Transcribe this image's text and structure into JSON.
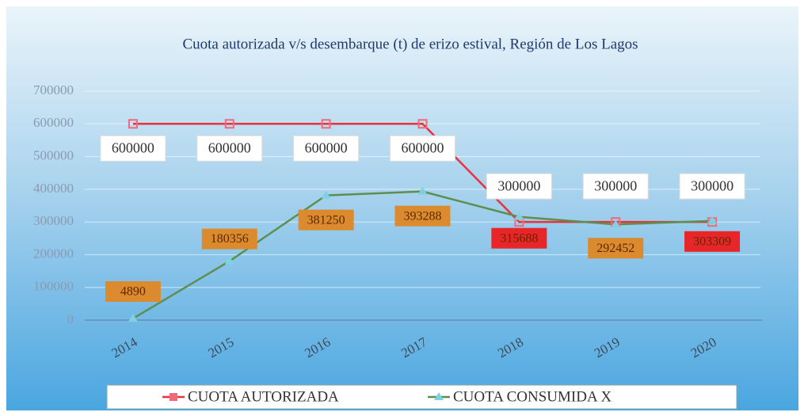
{
  "chart_data": {
    "type": "line",
    "title": "Cuota autorizada v/s desembarque (t) de erizo  estival, Región de Los Lagos",
    "categories": [
      "2014",
      "2015",
      "2016",
      "2017",
      "2018",
      "2019",
      "2020"
    ],
    "series": [
      {
        "name": "CUOTA AUTORIZADA",
        "color": "#e8323c",
        "marker_color": "#f06a7a",
        "label_colors": [
          "#ffffff",
          "#ffffff",
          "#ffffff",
          "#ffffff",
          "#ffffff",
          "#ffffff",
          "#ffffff"
        ],
        "values": [
          600000,
          600000,
          600000,
          600000,
          300000,
          300000,
          300000
        ]
      },
      {
        "name": "CUOTA CONSUMIDA X",
        "color": "#5f8f4e",
        "marker_color": "#7fd0e0",
        "label_colors": [
          "#dc8a2e",
          "#dc8a2e",
          "#dc8a2e",
          "#dc8a2e",
          "#e8262a",
          "#dc8a2e",
          "#e8262a"
        ],
        "values": [
          4890,
          180356,
          381250,
          393288,
          315688,
          292452,
          303309
        ]
      }
    ],
    "ylim": [
      0,
      700000
    ],
    "yticks": [
      0,
      100000,
      200000,
      300000,
      400000,
      500000,
      600000,
      700000
    ],
    "grid": true,
    "legend": "bottom"
  }
}
